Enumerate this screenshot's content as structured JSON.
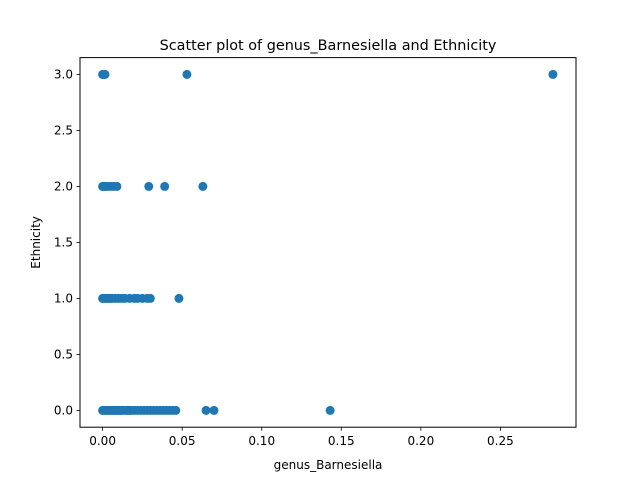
{
  "chart_data": {
    "type": "scatter",
    "title": "Scatter plot of genus_Barnesiella and Ethnicity",
    "xlabel": "genus_Barnesiella",
    "ylabel": "Ethnicity",
    "xlim": [
      -0.0142,
      0.2975
    ],
    "ylim": [
      -0.15,
      3.15
    ],
    "xticks": [
      0.0,
      0.05,
      0.1,
      0.15,
      0.2,
      0.25
    ],
    "xtick_labels": [
      "0.00",
      "0.05",
      "0.10",
      "0.15",
      "0.20",
      "0.25"
    ],
    "yticks": [
      0.0,
      0.5,
      1.0,
      1.5,
      2.0,
      2.5,
      3.0
    ],
    "ytick_labels": [
      "0.0",
      "0.5",
      "1.0",
      "1.5",
      "2.0",
      "2.5",
      "3.0"
    ],
    "grid": false,
    "legend": "none",
    "marker_color": "#1f77b4",
    "points": [
      {
        "x": 0.0,
        "y": 3
      },
      {
        "x": 0.0005,
        "y": 3
      },
      {
        "x": 0.001,
        "y": 3
      },
      {
        "x": 0.0015,
        "y": 3
      },
      {
        "x": 0.053,
        "y": 3
      },
      {
        "x": 0.283,
        "y": 3
      },
      {
        "x": 0.0,
        "y": 2
      },
      {
        "x": 0.001,
        "y": 2
      },
      {
        "x": 0.002,
        "y": 2
      },
      {
        "x": 0.003,
        "y": 2
      },
      {
        "x": 0.005,
        "y": 2
      },
      {
        "x": 0.007,
        "y": 2
      },
      {
        "x": 0.009,
        "y": 2
      },
      {
        "x": 0.029,
        "y": 2
      },
      {
        "x": 0.039,
        "y": 2
      },
      {
        "x": 0.063,
        "y": 2
      },
      {
        "x": 0.0,
        "y": 1
      },
      {
        "x": 0.001,
        "y": 1
      },
      {
        "x": 0.002,
        "y": 1
      },
      {
        "x": 0.003,
        "y": 1
      },
      {
        "x": 0.004,
        "y": 1
      },
      {
        "x": 0.005,
        "y": 1
      },
      {
        "x": 0.006,
        "y": 1
      },
      {
        "x": 0.008,
        "y": 1
      },
      {
        "x": 0.01,
        "y": 1
      },
      {
        "x": 0.012,
        "y": 1
      },
      {
        "x": 0.014,
        "y": 1
      },
      {
        "x": 0.017,
        "y": 1
      },
      {
        "x": 0.02,
        "y": 1
      },
      {
        "x": 0.022,
        "y": 1
      },
      {
        "x": 0.025,
        "y": 1
      },
      {
        "x": 0.028,
        "y": 1
      },
      {
        "x": 0.03,
        "y": 1
      },
      {
        "x": 0.048,
        "y": 1
      },
      {
        "x": 0.0,
        "y": 0
      },
      {
        "x": 0.001,
        "y": 0
      },
      {
        "x": 0.002,
        "y": 0
      },
      {
        "x": 0.003,
        "y": 0
      },
      {
        "x": 0.004,
        "y": 0
      },
      {
        "x": 0.005,
        "y": 0
      },
      {
        "x": 0.006,
        "y": 0
      },
      {
        "x": 0.007,
        "y": 0
      },
      {
        "x": 0.008,
        "y": 0
      },
      {
        "x": 0.009,
        "y": 0
      },
      {
        "x": 0.01,
        "y": 0
      },
      {
        "x": 0.011,
        "y": 0
      },
      {
        "x": 0.012,
        "y": 0
      },
      {
        "x": 0.013,
        "y": 0
      },
      {
        "x": 0.015,
        "y": 0
      },
      {
        "x": 0.016,
        "y": 0
      },
      {
        "x": 0.017,
        "y": 0
      },
      {
        "x": 0.018,
        "y": 0
      },
      {
        "x": 0.02,
        "y": 0
      },
      {
        "x": 0.022,
        "y": 0
      },
      {
        "x": 0.024,
        "y": 0
      },
      {
        "x": 0.026,
        "y": 0
      },
      {
        "x": 0.028,
        "y": 0
      },
      {
        "x": 0.03,
        "y": 0
      },
      {
        "x": 0.032,
        "y": 0
      },
      {
        "x": 0.034,
        "y": 0
      },
      {
        "x": 0.036,
        "y": 0
      },
      {
        "x": 0.038,
        "y": 0
      },
      {
        "x": 0.04,
        "y": 0
      },
      {
        "x": 0.042,
        "y": 0
      },
      {
        "x": 0.044,
        "y": 0
      },
      {
        "x": 0.046,
        "y": 0
      },
      {
        "x": 0.065,
        "y": 0
      },
      {
        "x": 0.07,
        "y": 0
      },
      {
        "x": 0.143,
        "y": 0
      }
    ]
  }
}
